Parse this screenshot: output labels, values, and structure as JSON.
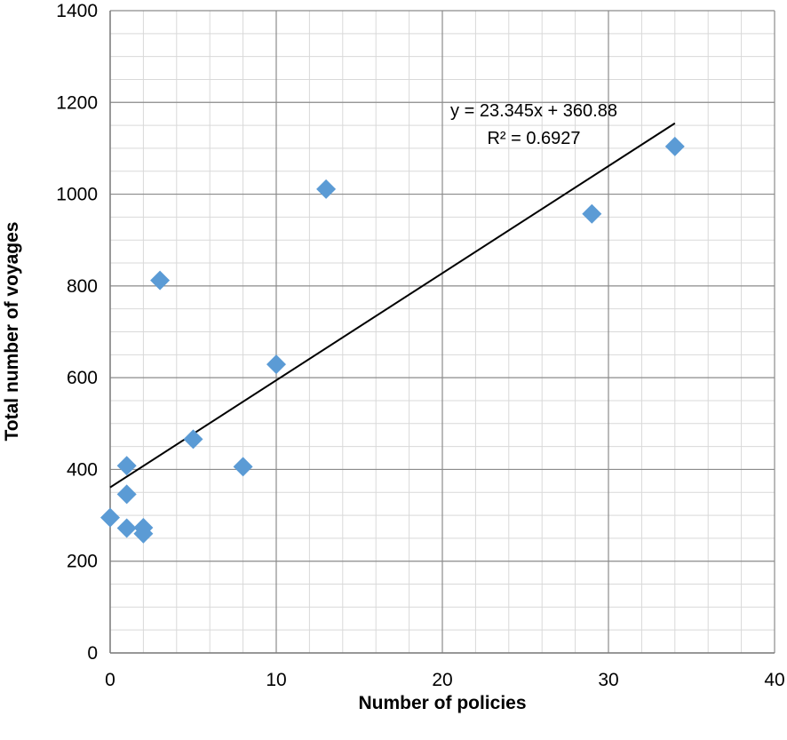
{
  "chart_data": {
    "type": "scatter",
    "xlabel": "Number of policies",
    "ylabel": "Total number of voyages",
    "xlim": [
      0,
      40
    ],
    "ylim": [
      0,
      1400
    ],
    "xticks": [
      0,
      10,
      20,
      30,
      40
    ],
    "yticks": [
      0,
      200,
      400,
      600,
      800,
      1000,
      1200,
      1400
    ],
    "x_tick_labels": [
      "0",
      "10",
      "20",
      "30",
      "40"
    ],
    "y_tick_labels": [
      "0",
      "200",
      "400",
      "600",
      "800",
      "1000",
      "1200",
      "1400"
    ],
    "grid": "on (major and minor)",
    "legend": "none",
    "marker": "diamond",
    "marker_color": "#5b9bd5",
    "series": [
      {
        "points": [
          {
            "x": 0,
            "y": 295
          },
          {
            "x": 1,
            "y": 408
          },
          {
            "x": 1,
            "y": 346
          },
          {
            "x": 1,
            "y": 272
          },
          {
            "x": 2,
            "y": 273
          },
          {
            "x": 2,
            "y": 260
          },
          {
            "x": 3,
            "y": 812
          },
          {
            "x": 5,
            "y": 466
          },
          {
            "x": 8,
            "y": 406
          },
          {
            "x": 10,
            "y": 629
          },
          {
            "x": 13,
            "y": 1011
          },
          {
            "x": 29,
            "y": 957
          },
          {
            "x": 34,
            "y": 1104
          }
        ]
      }
    ],
    "trendline": {
      "slope": 23.345,
      "intercept": 360.88,
      "x_range": [
        0,
        34
      ],
      "equation_text": "y = 23.345x + 360.88",
      "r2_text": "R² = 0.6927",
      "color": "#000000"
    }
  }
}
